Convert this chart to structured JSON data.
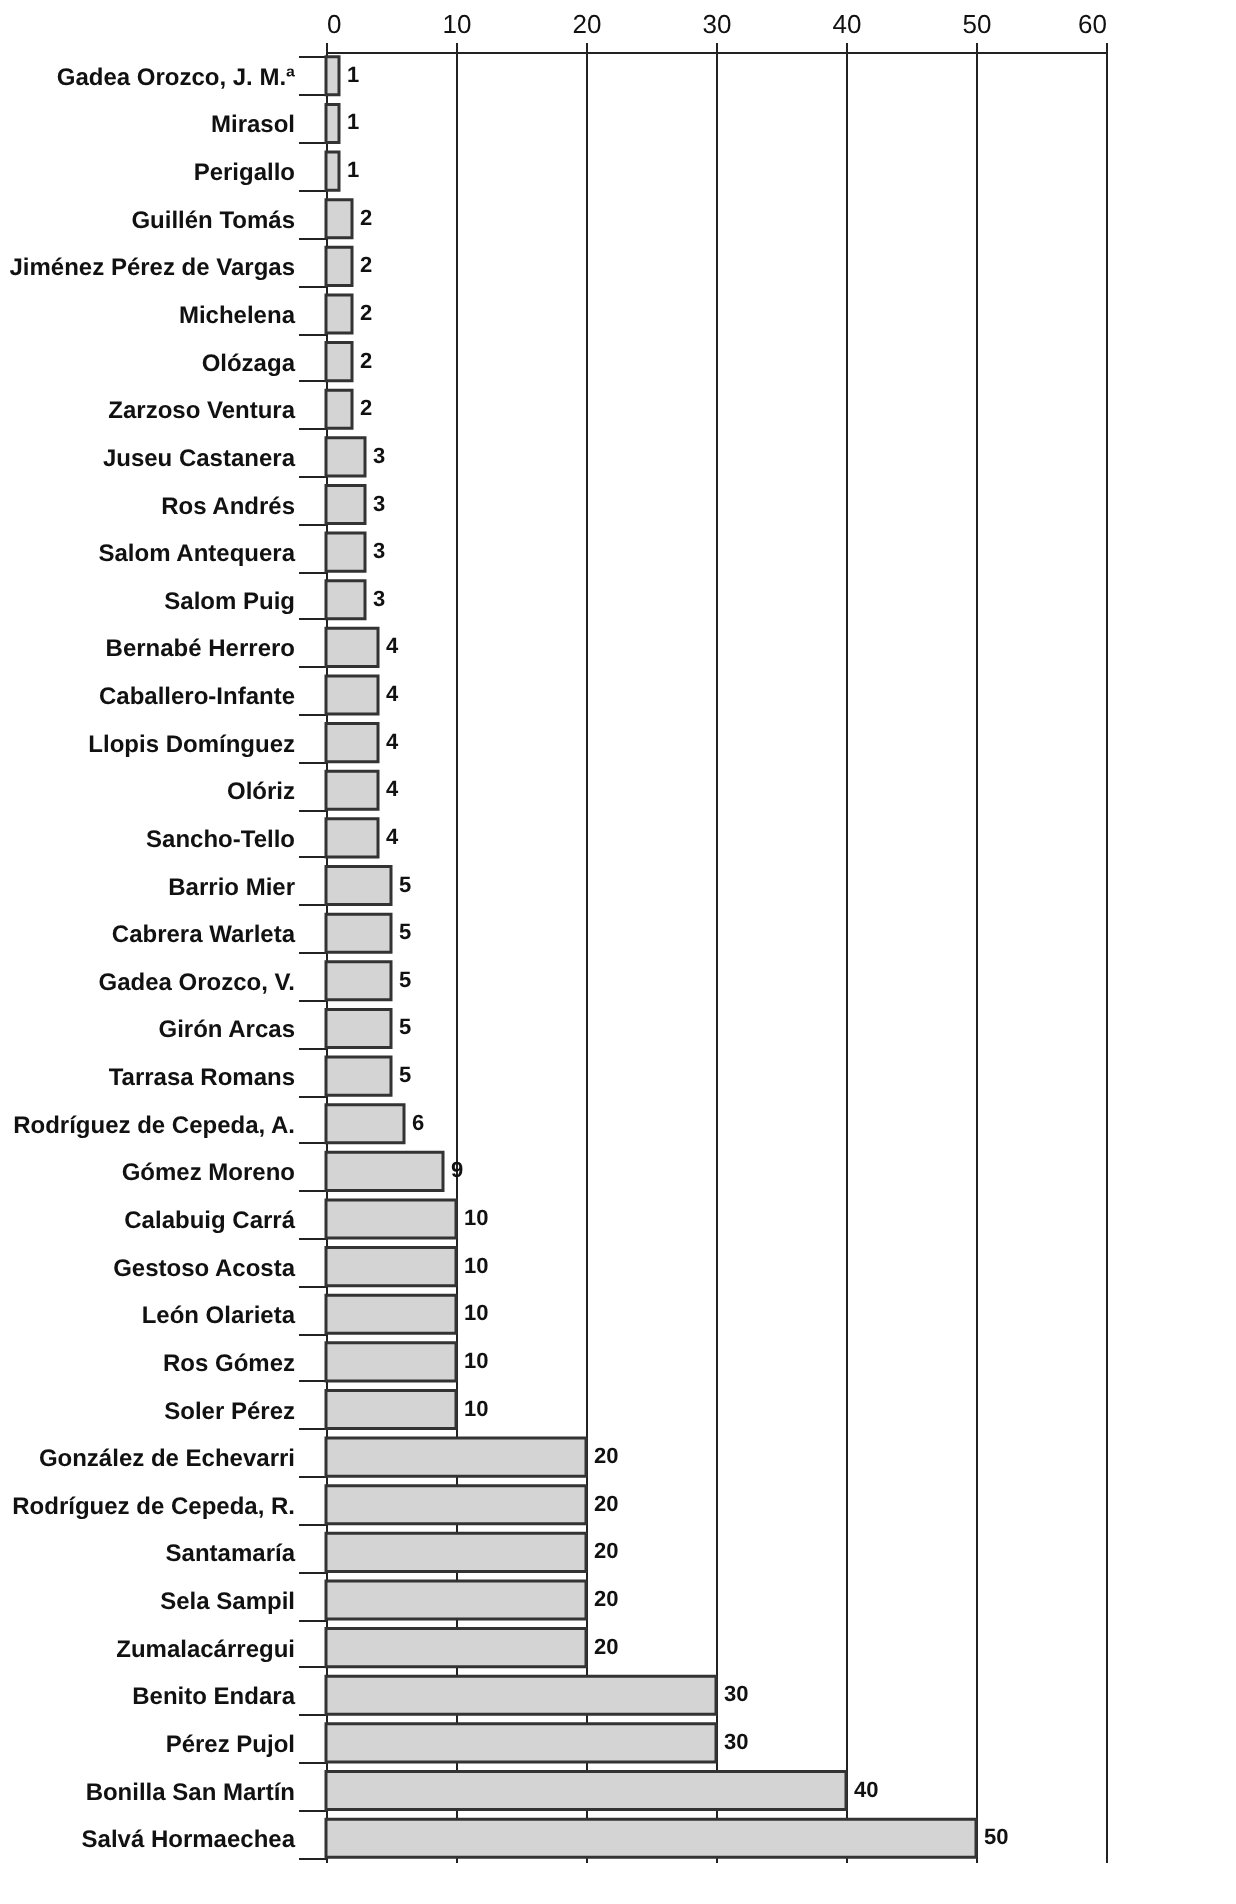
{
  "chart_data": {
    "type": "bar",
    "orientation": "horizontal",
    "categories": [
      "Gadea Orozco, J. M.ª",
      "Mirasol",
      "Perigallo",
      "Guillén Tomás",
      "Jiménez Pérez de Vargas",
      "Michelena",
      "Olózaga",
      "Zarzoso Ventura",
      "Juseu Castanera",
      "Ros Andrés",
      "Salom Antequera",
      "Salom Puig",
      "Bernabé Herrero",
      "Caballero-Infante",
      "Llopis Domínguez",
      "Olóriz",
      "Sancho-Tello",
      "Barrio Mier",
      "Cabrera Warleta",
      "Gadea Orozco, V.",
      "Girón Arcas",
      "Tarrasa Romans",
      "Rodríguez de Cepeda, A.",
      "Gómez Moreno",
      "Calabuig Carrá",
      "Gestoso Acosta",
      "León Olarieta",
      "Ros Gómez",
      "Soler Pérez",
      "González de Echevarri",
      "Rodríguez de Cepeda, R.",
      "Santamaría",
      "Sela Sampil",
      "Zumalacárregui",
      "Benito Endara",
      "Pérez Pujol",
      "Bonilla San Martín",
      "Salvá Hormaechea"
    ],
    "values": [
      1,
      1,
      1,
      2,
      2,
      2,
      2,
      2,
      3,
      3,
      3,
      3,
      4,
      4,
      4,
      4,
      4,
      5,
      5,
      5,
      5,
      5,
      6,
      9,
      10,
      10,
      10,
      10,
      10,
      20,
      20,
      20,
      20,
      20,
      30,
      30,
      40,
      50
    ],
    "color": "#d4d4d4",
    "xlim": [
      0,
      60
    ],
    "xticks": [
      0,
      10,
      20,
      30,
      40,
      50,
      60
    ],
    "grid": "x",
    "data_labels": true
  }
}
